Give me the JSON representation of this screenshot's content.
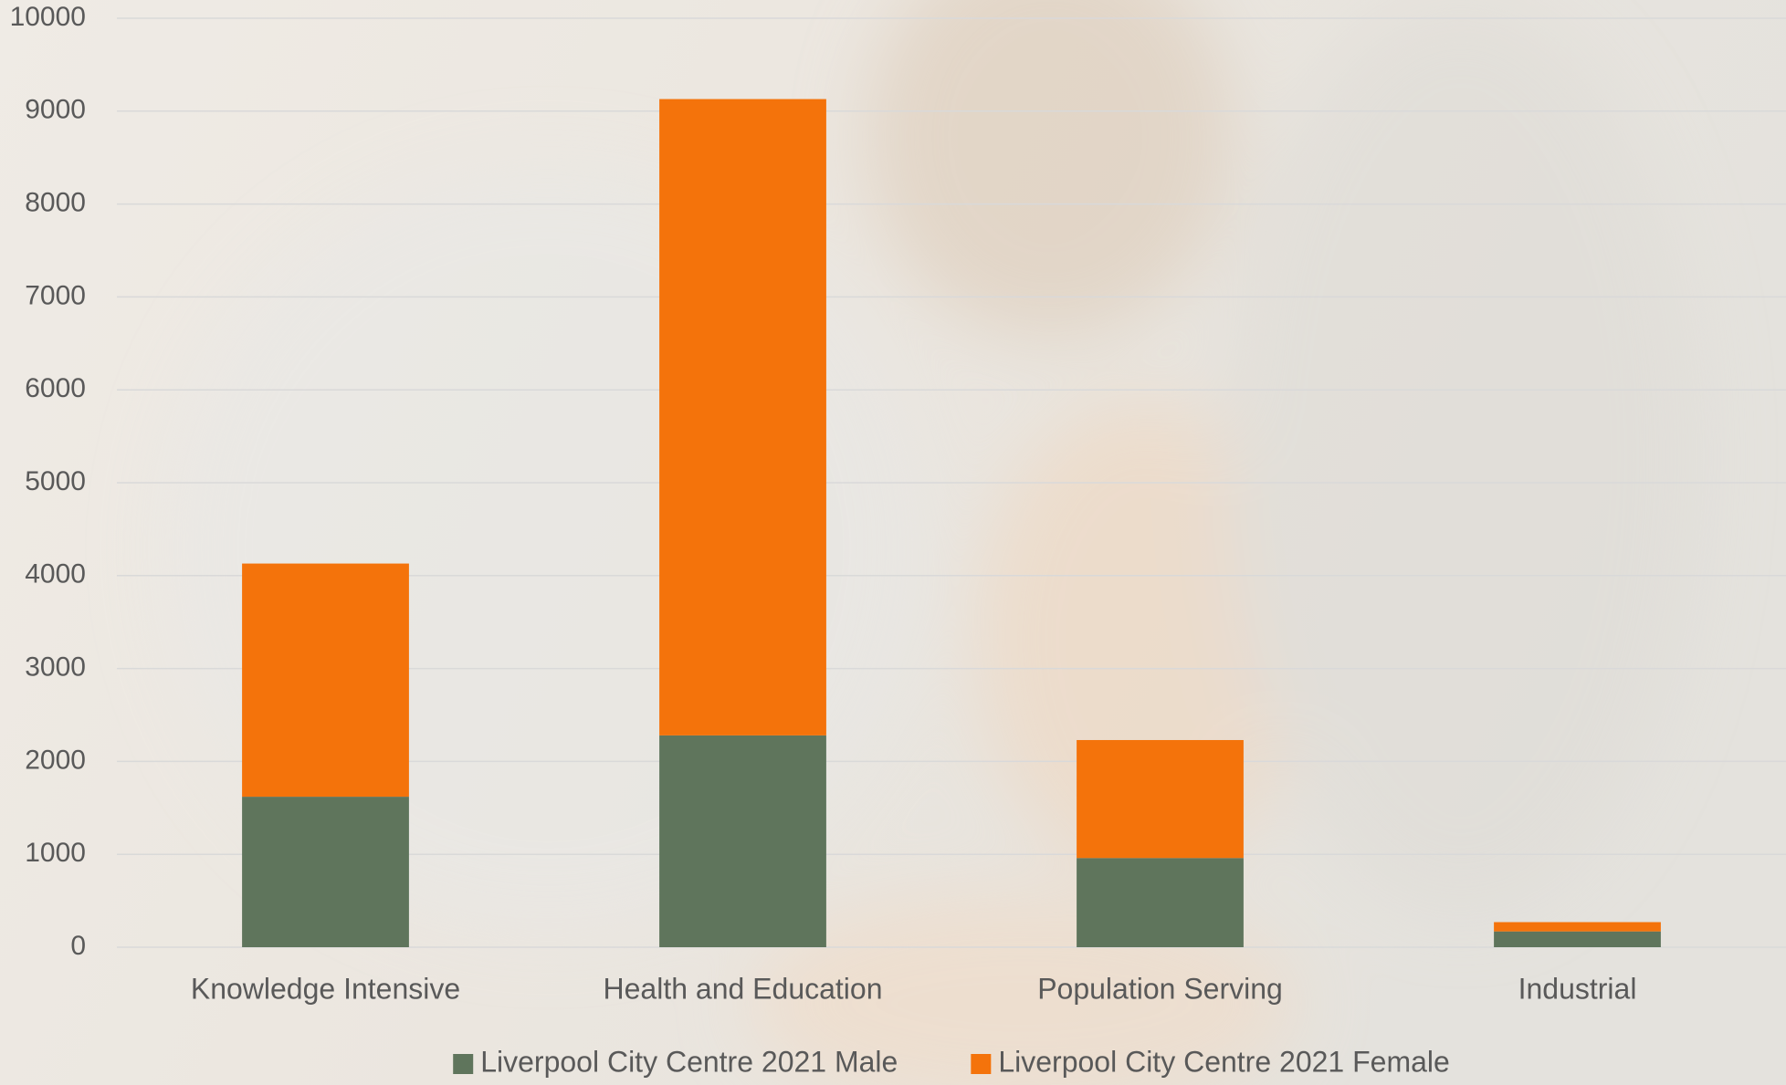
{
  "chart_data": {
    "type": "stacked_bar",
    "categories": [
      "Knowledge Intensive",
      "Health and Education",
      "Population Serving",
      "Industrial"
    ],
    "series": [
      {
        "name": "Liverpool City Centre 2021 Male",
        "color": "#5f755c",
        "values": [
          1620,
          2280,
          960,
          170
        ]
      },
      {
        "name": "Liverpool City Centre 2021 Female",
        "color": "#f4730b",
        "values": [
          2510,
          6850,
          1270,
          100
        ]
      }
    ],
    "ylim": [
      0,
      10000
    ],
    "yticks": [
      0,
      1000,
      2000,
      3000,
      4000,
      5000,
      6000,
      7000,
      8000,
      9000,
      10000
    ],
    "grid": true,
    "legend": "bottom"
  }
}
